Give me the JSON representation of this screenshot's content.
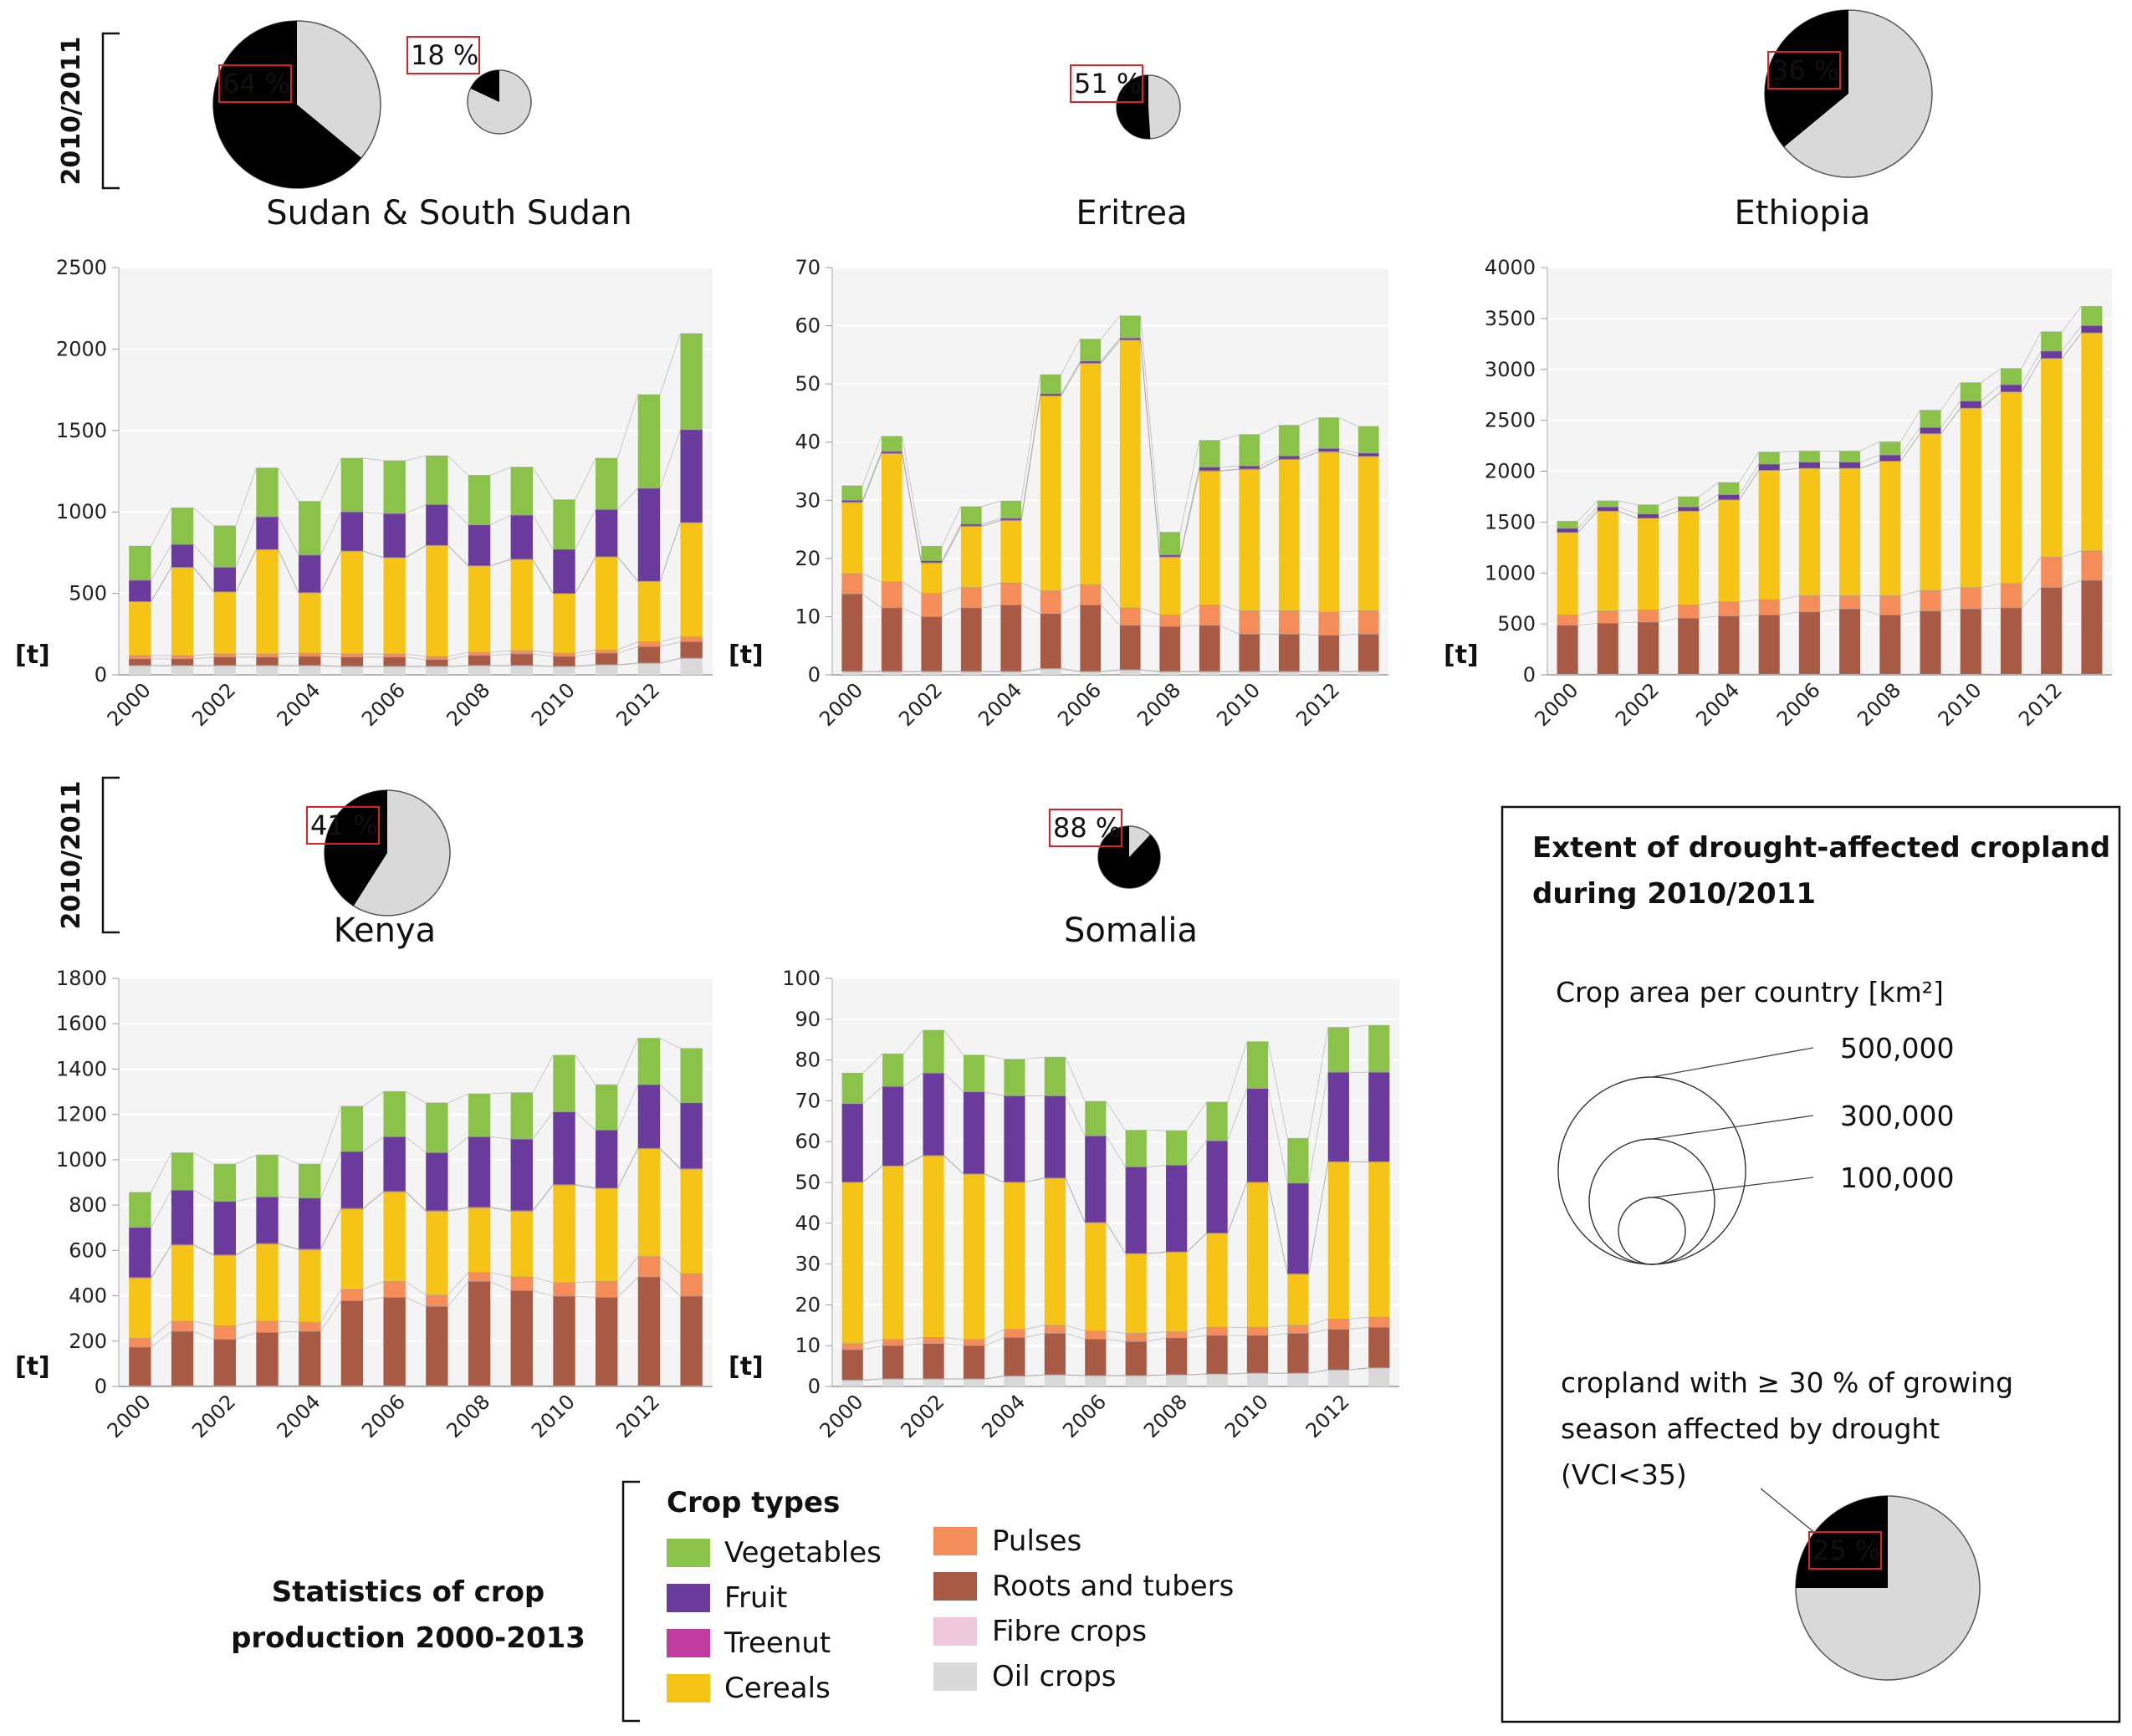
{
  "period_label": "2010/2011",
  "unit_label": "[t]",
  "colors": {
    "Vegetables": "#8bc34a",
    "Fruit": "#6a3a9c",
    "Treenut": "#c03ca0",
    "Cereals": "#f6c416",
    "Pulses": "#f58d5a",
    "Roots and tubers": "#a85a45",
    "Fibre crops": "#f0c8dc",
    "Oil crops": "#d9d9d9"
  },
  "chart_data": [
    {
      "type": "bar",
      "title": "Sudan & South Sudan",
      "ylabel": "[t]",
      "ylim": [
        0,
        2500
      ],
      "ytick_step": 500,
      "x": [
        2000,
        2001,
        2002,
        2003,
        2004,
        2005,
        2006,
        2007,
        2008,
        2009,
        2010,
        2011,
        2012,
        2013
      ],
      "x_tick_labels": [
        "2000",
        "2002",
        "2004",
        "2006",
        "2008",
        "2010",
        "2012"
      ],
      "series": [
        {
          "name": "Oil crops",
          "values": [
            55,
            55,
            55,
            55,
            55,
            50,
            50,
            50,
            55,
            55,
            50,
            60,
            70,
            100
          ]
        },
        {
          "name": "Fibre crops",
          "values": [
            3,
            3,
            3,
            3,
            3,
            3,
            3,
            3,
            3,
            3,
            3,
            3,
            3,
            3
          ]
        },
        {
          "name": "Roots and tubers",
          "values": [
            40,
            40,
            50,
            50,
            55,
            55,
            55,
            40,
            60,
            70,
            60,
            70,
            100,
            100
          ]
        },
        {
          "name": "Pulses",
          "values": [
            20,
            20,
            20,
            20,
            20,
            20,
            20,
            20,
            20,
            20,
            20,
            20,
            30,
            30
          ]
        },
        {
          "name": "Cereals",
          "values": [
            330,
            540,
            380,
            640,
            370,
            630,
            590,
            680,
            530,
            560,
            365,
            570,
            370,
            700
          ]
        },
        {
          "name": "Treenut",
          "values": [
            2,
            2,
            2,
            2,
            2,
            2,
            2,
            2,
            2,
            2,
            2,
            2,
            2,
            2
          ]
        },
        {
          "name": "Fruit",
          "values": [
            130,
            140,
            150,
            200,
            230,
            240,
            270,
            250,
            250,
            270,
            270,
            290,
            570,
            570
          ]
        },
        {
          "name": "Vegetables",
          "values": [
            210,
            225,
            255,
            300,
            330,
            330,
            325,
            300,
            305,
            295,
            305,
            315,
            575,
            590
          ]
        }
      ],
      "pies": [
        {
          "percent": 64,
          "label": "64 %",
          "size": "large"
        },
        {
          "percent": 18,
          "label": "18 %",
          "size": "small"
        }
      ]
    },
    {
      "type": "bar",
      "title": "Eritrea",
      "ylabel": "[t]",
      "ylim": [
        0,
        70
      ],
      "ytick_step": 10,
      "x": [
        2000,
        2001,
        2002,
        2003,
        2004,
        2005,
        2006,
        2007,
        2008,
        2009,
        2010,
        2011,
        2012,
        2013
      ],
      "x_tick_labels": [
        "2000",
        "2002",
        "2004",
        "2006",
        "2008",
        "2010",
        "2012"
      ],
      "series": [
        {
          "name": "Oil crops",
          "values": [
            0.5,
            0.5,
            0.5,
            0.5,
            0.5,
            1,
            0.5,
            0.8,
            0.5,
            0.5,
            0.5,
            0.5,
            0.5,
            0.5
          ]
        },
        {
          "name": "Fibre crops",
          "values": [
            0.1,
            0.1,
            0.1,
            0.1,
            0.1,
            0.1,
            0.1,
            0.1,
            0.1,
            0.1,
            0.1,
            0.1,
            0.1,
            0.1
          ]
        },
        {
          "name": "Roots and tubers",
          "values": [
            13.3,
            10.9,
            9.4,
            10.9,
            11.4,
            9.4,
            11.4,
            7.6,
            7.7,
            7.9,
            6.4,
            6.4,
            6.2,
            6.4
          ]
        },
        {
          "name": "Pulses",
          "values": [
            3.5,
            4.5,
            4,
            3.5,
            3.8,
            4,
            3.5,
            3,
            2,
            3.5,
            4,
            4,
            4,
            4
          ]
        },
        {
          "name": "Cereals",
          "values": [
            12.2,
            22,
            5.2,
            10.5,
            10.7,
            33.4,
            38,
            46,
            9.9,
            23,
            24.3,
            26,
            27.5,
            26.5
          ]
        },
        {
          "name": "Treenut",
          "values": [
            0.1,
            0.1,
            0.1,
            0.1,
            0.1,
            0.1,
            0.1,
            0.1,
            0.1,
            0.1,
            0.1,
            0.1,
            0.1,
            0.1
          ]
        },
        {
          "name": "Fruit",
          "values": [
            0.3,
            0.3,
            0.3,
            0.3,
            0.3,
            0.3,
            0.3,
            0.3,
            0.3,
            0.6,
            0.5,
            0.5,
            0.5,
            0.5
          ]
        },
        {
          "name": "Vegetables",
          "values": [
            2.5,
            2.6,
            2.5,
            3,
            3,
            3.3,
            3.8,
            3.8,
            3.9,
            4.6,
            5.4,
            5.3,
            5.3,
            4.6
          ]
        }
      ],
      "pies": [
        {
          "percent": 51,
          "label": "51 %",
          "size": "small"
        }
      ]
    },
    {
      "type": "bar",
      "title": "Ethiopia",
      "ylabel": "[t]",
      "ylim": [
        0,
        4000
      ],
      "ytick_step": 500,
      "x": [
        2000,
        2001,
        2002,
        2003,
        2004,
        2005,
        2006,
        2007,
        2008,
        2009,
        2010,
        2011,
        2012,
        2013
      ],
      "x_tick_labels": [
        "2000",
        "2002",
        "2004",
        "2006",
        "2008",
        "2010",
        "2012"
      ],
      "series": [
        {
          "name": "Oil crops",
          "values": [
            5,
            5,
            5,
            5,
            5,
            5,
            5,
            5,
            5,
            5,
            5,
            5,
            5,
            5
          ]
        },
        {
          "name": "Fibre crops",
          "values": [
            2,
            2,
            2,
            2,
            2,
            2,
            2,
            2,
            2,
            2,
            2,
            2,
            2,
            2
          ]
        },
        {
          "name": "Roots and tubers",
          "values": [
            480,
            500,
            510,
            550,
            570,
            580,
            610,
            640,
            580,
            620,
            640,
            650,
            850,
            920
          ]
        },
        {
          "name": "Pulses",
          "values": [
            100,
            120,
            120,
            130,
            140,
            150,
            160,
            130,
            190,
            200,
            210,
            240,
            300,
            290
          ]
        },
        {
          "name": "Cereals",
          "values": [
            810,
            980,
            900,
            920,
            1000,
            1270,
            1250,
            1250,
            1320,
            1540,
            1760,
            1880,
            1950,
            2140
          ]
        },
        {
          "name": "Treenut",
          "values": [
            2,
            2,
            2,
            2,
            2,
            2,
            2,
            2,
            2,
            2,
            2,
            2,
            2,
            2
          ]
        },
        {
          "name": "Fruit",
          "values": [
            40,
            40,
            40,
            40,
            50,
            60,
            60,
            60,
            60,
            60,
            70,
            70,
            70,
            70
          ]
        },
        {
          "name": "Vegetables",
          "values": [
            70,
            60,
            90,
            100,
            120,
            120,
            110,
            110,
            130,
            170,
            180,
            160,
            190,
            190
          ]
        }
      ],
      "pies": [
        {
          "percent": 36,
          "label": "36 %",
          "size": "large"
        }
      ]
    },
    {
      "type": "bar",
      "title": "Kenya",
      "ylabel": "[t]",
      "ylim": [
        0,
        1800
      ],
      "ytick_step": 200,
      "x": [
        2000,
        2001,
        2002,
        2003,
        2004,
        2005,
        2006,
        2007,
        2008,
        2009,
        2010,
        2011,
        2012,
        2013
      ],
      "x_tick_labels": [
        "2000",
        "2002",
        "2004",
        "2006",
        "2008",
        "2010",
        "2012"
      ],
      "series": [
        {
          "name": "Oil crops",
          "values": [
            2,
            2,
            2,
            2,
            2,
            2,
            2,
            2,
            2,
            2,
            2,
            2,
            2,
            2
          ]
        },
        {
          "name": "Fibre crops",
          "values": [
            1,
            1,
            1,
            1,
            1,
            1,
            1,
            1,
            1,
            1,
            1,
            1,
            1,
            1
          ]
        },
        {
          "name": "Roots and tubers",
          "values": [
            170,
            240,
            205,
            235,
            240,
            375,
            390,
            350,
            460,
            420,
            395,
            390,
            480,
            395
          ]
        },
        {
          "name": "Pulses",
          "values": [
            40,
            45,
            60,
            50,
            40,
            50,
            70,
            50,
            40,
            60,
            60,
            70,
            90,
            100
          ]
        },
        {
          "name": "Cereals",
          "values": [
            265,
            335,
            310,
            340,
            320,
            355,
            395,
            370,
            285,
            290,
            430,
            410,
            475,
            460
          ]
        },
        {
          "name": "Treenut",
          "values": [
            3,
            3,
            3,
            3,
            3,
            3,
            3,
            3,
            3,
            3,
            3,
            3,
            3,
            3
          ]
        },
        {
          "name": "Fruit",
          "values": [
            220,
            240,
            235,
            205,
            225,
            250,
            240,
            255,
            310,
            315,
            320,
            255,
            280,
            290
          ]
        },
        {
          "name": "Vegetables",
          "values": [
            155,
            165,
            165,
            185,
            150,
            200,
            200,
            220,
            190,
            205,
            250,
            200,
            205,
            240
          ]
        }
      ],
      "pies": [
        {
          "percent": 41,
          "label": "41 %",
          "size": "large"
        }
      ]
    },
    {
      "type": "bar",
      "title": "Somalia",
      "ylabel": "[t]",
      "ylim": [
        0,
        100
      ],
      "ytick_step": 10,
      "x": [
        2000,
        2001,
        2002,
        2003,
        2004,
        2005,
        2006,
        2007,
        2008,
        2009,
        2010,
        2011,
        2012,
        2013
      ],
      "x_tick_labels": [
        "2000",
        "2002",
        "2004",
        "2006",
        "2008",
        "2010",
        "2012"
      ],
      "series": [
        {
          "name": "Oil crops",
          "values": [
            1.5,
            1.8,
            1.8,
            1.8,
            2.5,
            2.8,
            2.6,
            2.6,
            2.8,
            3,
            3.2,
            3.2,
            4,
            4.5
          ]
        },
        {
          "name": "Fibre crops",
          "values": [
            0.1,
            0.1,
            0.1,
            0.1,
            0.1,
            0.1,
            0.1,
            0.1,
            0.1,
            0.1,
            0.1,
            0.1,
            0.1,
            0.1
          ]
        },
        {
          "name": "Roots and tubers",
          "values": [
            7.4,
            8.1,
            8.6,
            8.1,
            9.4,
            10.1,
            8.9,
            8.3,
            9,
            9.4,
            9.2,
            9.7,
            9.9,
            9.9
          ]
        },
        {
          "name": "Pulses",
          "values": [
            1.5,
            1.5,
            1.5,
            1.5,
            2,
            2,
            2,
            2,
            1.5,
            2,
            2,
            2,
            2.5,
            2.5
          ]
        },
        {
          "name": "Cereals",
          "values": [
            39.5,
            42.5,
            44.5,
            40.5,
            36,
            36,
            26.5,
            19.5,
            19.5,
            23,
            35.5,
            12.5,
            38.5,
            38
          ]
        },
        {
          "name": "Treenut",
          "values": [
            0.1,
            0.1,
            0.1,
            0.1,
            0.1,
            0.1,
            0.1,
            0.1,
            0.1,
            0.1,
            0.1,
            0.1,
            0.1,
            0.1
          ]
        },
        {
          "name": "Fruit",
          "values": [
            19.2,
            19.4,
            20.2,
            20.1,
            21.1,
            20.1,
            21.2,
            21.2,
            21.2,
            22.6,
            22.9,
            22.2,
            21.9,
            21.9
          ]
        },
        {
          "name": "Vegetables",
          "values": [
            7.5,
            8,
            10.5,
            9,
            9,
            9.5,
            8.5,
            9,
            8.5,
            9.5,
            11.5,
            11,
            11,
            11.5
          ]
        }
      ],
      "pies": [
        {
          "percent": 88,
          "label": "88 %",
          "size": "small"
        }
      ]
    }
  ],
  "info_box": {
    "title_line1": "Extent of drought-affected cropland",
    "title_line2": "during 2010/2011",
    "area_label": "Crop area per country [km²]",
    "circle_values": [
      "500,000",
      "300,000",
      "100,000"
    ],
    "drought_line1": "cropland with ≥ 30 % of growing",
    "drought_line2": "season affected by drought",
    "drought_line3": "(VCI<35)",
    "example_pie": {
      "percent": 25,
      "label": "25 %"
    }
  },
  "legend": {
    "title": "Crop types",
    "col1": [
      "Vegetables",
      "Fruit",
      "Treenut",
      "Cereals"
    ],
    "col2": [
      "Pulses",
      "Roots and tubers",
      "Fibre crops",
      "Oil crops"
    ]
  },
  "stats_title_line1": "Statistics of crop",
  "stats_title_line2": "production 2000-2013"
}
